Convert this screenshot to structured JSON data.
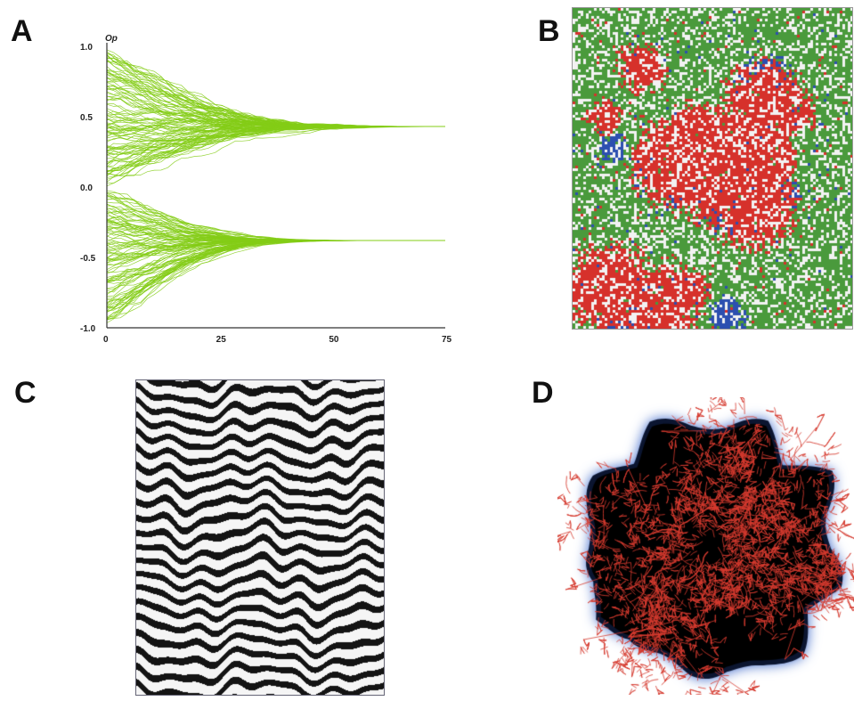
{
  "panels": {
    "a": {
      "label": "A"
    },
    "b": {
      "label": "B"
    },
    "c": {
      "label": "C"
    },
    "d": {
      "label": "D"
    }
  },
  "colors": {
    "trajectory": "#84cc16",
    "lattice_green": "#4a9a3c",
    "lattice_red": "#d6312b",
    "lattice_blue": "#2c4fb0",
    "dendrite": "#d63a2e",
    "halo": "#0b1530"
  },
  "chart_data": {
    "type": "line",
    "title": "",
    "xlabel": "",
    "ylabel": "Op",
    "xlim": [
      0,
      75
    ],
    "ylim": [
      -1.0,
      1.0
    ],
    "x_ticks": [
      "0",
      "25",
      "50",
      "75"
    ],
    "y_ticks": [
      "1.0",
      "0.5",
      "0.0",
      "-0.5",
      "-1.0"
    ],
    "grid": false,
    "series_count": 220,
    "clusters": [
      {
        "start_range": [
          0.0,
          1.0
        ],
        "converge_value": 0.43,
        "converge_x": 57,
        "end_x": 76
      },
      {
        "start_range": [
          -1.0,
          0.0
        ],
        "converge_value": -0.38,
        "converge_x": 38,
        "end_x": 76
      }
    ]
  }
}
